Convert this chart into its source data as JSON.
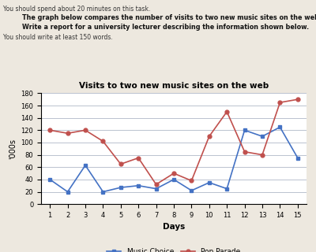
{
  "title": "Visits to two new music sites on the web",
  "xlabel": "Days",
  "ylabel": "'000s",
  "days": [
    1,
    2,
    3,
    4,
    5,
    6,
    7,
    8,
    9,
    10,
    11,
    12,
    13,
    14,
    15
  ],
  "music_choice": [
    40,
    20,
    63,
    20,
    27,
    30,
    25,
    40,
    22,
    35,
    25,
    120,
    110,
    125,
    75
  ],
  "pop_parade": [
    120,
    115,
    120,
    102,
    65,
    75,
    32,
    50,
    38,
    110,
    150,
    85,
    80,
    165,
    170
  ],
  "music_choice_color": "#4472C4",
  "pop_parade_color": "#C0504D",
  "ylim": [
    0,
    180
  ],
  "yticks": [
    0,
    20,
    40,
    60,
    80,
    100,
    120,
    140,
    160,
    180
  ],
  "header_line1": "You should spend about 20 minutes on this task.",
  "header_line2": "The graph below compares the number of visits to two new music sites on the web.",
  "header_line3": "Write a report for a university lecturer describing the information shown below.",
  "header_line4": "You should write at least 150 words.",
  "bg_color": "#ede8df",
  "legend_label1": "Music Choice",
  "legend_label2": "Pop Parade"
}
